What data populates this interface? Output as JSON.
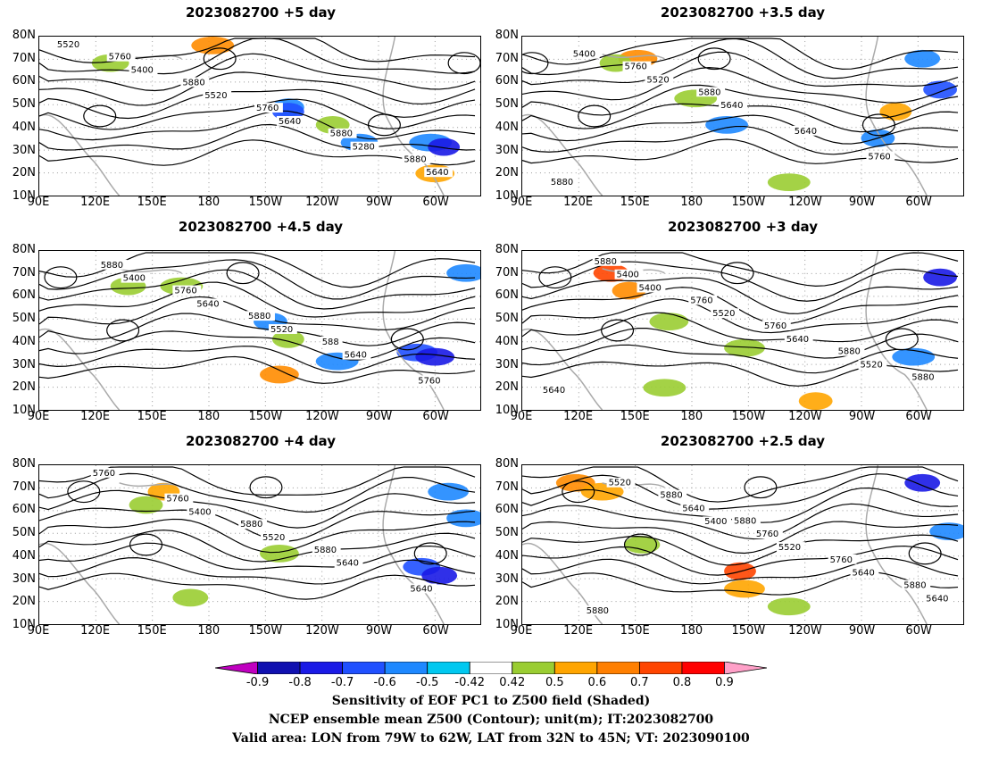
{
  "panels": [
    {
      "id": "p1",
      "title": "2023082700  +5 day"
    },
    {
      "id": "p2",
      "title": "2023082700  +3.5  day"
    },
    {
      "id": "p3",
      "title": "2023082700  +4.5  day"
    },
    {
      "id": "p4",
      "title": "2023082700  +3  day"
    },
    {
      "id": "p5",
      "title": "2023082700  +4  day"
    },
    {
      "id": "p6",
      "title": "2023082700  +2.5  day"
    }
  ],
  "lat_labels": [
    "80N",
    "70N",
    "60N",
    "50N",
    "40N",
    "30N",
    "20N",
    "10N"
  ],
  "lon_labels": [
    "90E",
    "120E",
    "150E",
    "180",
    "150W",
    "120W",
    "90W",
    "60W"
  ],
  "contour_labels": {
    "p1": [
      "5520",
      "5400",
      "5520",
      "5640",
      "5280",
      "5640",
      "5760",
      "5880",
      "5760",
      "5880",
      "5880"
    ],
    "p2": [
      "5400",
      "5520",
      "5640",
      "5640",
      "5760",
      "5880",
      "5760",
      "5880"
    ],
    "p3": [
      "5400",
      "5640",
      "5520",
      "5640",
      "5760",
      "5880",
      "5760",
      "5880",
      "588"
    ],
    "p4": [
      "5400",
      "5520",
      "5640",
      "5520",
      "5640",
      "5400",
      "5760",
      "5760",
      "5880",
      "5880",
      "5880"
    ],
    "p5": [
      "5400",
      "5520",
      "5640",
      "5640",
      "5760",
      "5760",
      "5880",
      "5880"
    ],
    "p6": [
      "5400",
      "5520",
      "5640",
      "5640",
      "5520",
      "5640",
      "5760",
      "5760",
      "5880",
      "5880",
      "5880",
      "5880"
    ]
  },
  "colorbar": {
    "ticks": [
      "-0.9",
      "-0.8",
      "-0.7",
      "-0.6",
      "-0.5",
      "-0.42",
      "0.42",
      "0.5",
      "0.6",
      "0.7",
      "0.8",
      "0.9"
    ],
    "colors": [
      "#c000c0",
      "#1010b0",
      "#1a1ae6",
      "#2050ff",
      "#1e88ff",
      "#00c8f0",
      "#ffffff",
      "#9acd32",
      "#ffa500",
      "#ff7f00",
      "#ff4500",
      "#ff0000",
      "#ffa0c8"
    ]
  },
  "caption": {
    "line1": "Sensitivity of EOF PC1 to Z500 field (Shaded)",
    "line2": "NCEP ensemble mean Z500 (Contour); unit(m); IT:2023082700",
    "line3": "Valid area: LON from 79W to 62W, LAT from 32N to 45N; VT: 2023090100"
  }
}
